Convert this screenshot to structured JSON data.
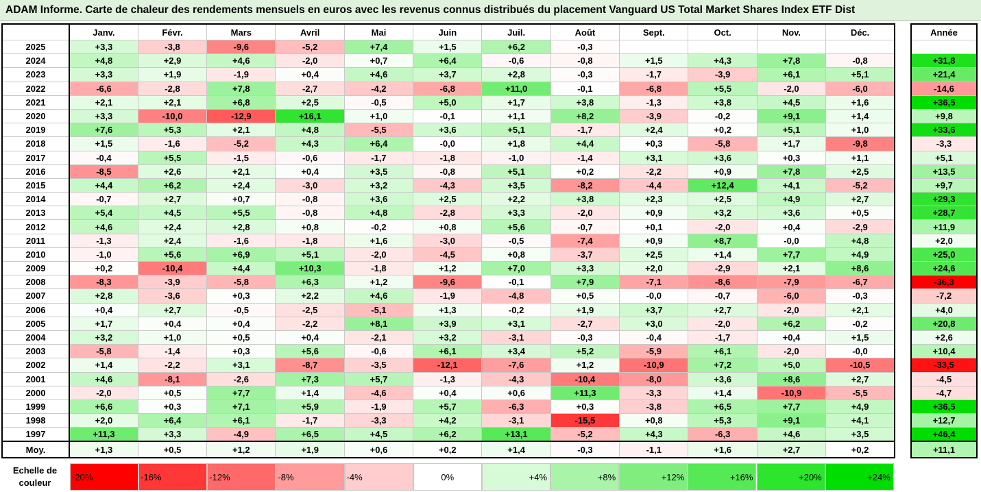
{
  "title": "ADAM Informe. Carte de chaleur des rendements mensuels en euros avec les revenus connus distribués du placement Vanguard US Total Market Shares Index ETF Dist",
  "chart_data": {
    "type": "heatmap",
    "months": [
      "Janv.",
      "Févr.",
      "Mars",
      "Avril",
      "Mai",
      "Juin",
      "Juil.",
      "Août",
      "Sept.",
      "Oct.",
      "Nov.",
      "Déc."
    ],
    "annual_header": "Année",
    "avg_label": "Moy.",
    "rows": [
      {
        "year": "2025",
        "values": [
          "+3,3",
          "-3,8",
          "-9,6",
          "-5,2",
          "+7,4",
          "+1,5",
          "+6,2",
          "-0,3",
          "",
          "",
          "",
          ""
        ],
        "annual": ""
      },
      {
        "year": "2024",
        "values": [
          "+4,8",
          "+2,9",
          "+4,6",
          "-2,0",
          "+0,7",
          "+6,4",
          "-0,6",
          "-0,8",
          "+1,5",
          "+4,3",
          "+7,8",
          "-0,8"
        ],
        "annual": "+31,8"
      },
      {
        "year": "2023",
        "values": [
          "+3,3",
          "+1,9",
          "-1,9",
          "+0,4",
          "+4,6",
          "+3,7",
          "+2,8",
          "-0,3",
          "-1,7",
          "-3,9",
          "+6,1",
          "+5,1"
        ],
        "annual": "+21,4"
      },
      {
        "year": "2022",
        "values": [
          "-6,6",
          "-2,8",
          "+7,8",
          "-2,7",
          "-4,2",
          "-6,8",
          "+11,0",
          "-0,1",
          "-6,8",
          "+5,5",
          "-2,0",
          "-6,0"
        ],
        "annual": "-14,6"
      },
      {
        "year": "2021",
        "values": [
          "+2,1",
          "+2,1",
          "+6,8",
          "+2,5",
          "-0,5",
          "+5,0",
          "+1,7",
          "+3,8",
          "-1,3",
          "+3,8",
          "+4,5",
          "+1,6"
        ],
        "annual": "+36,5"
      },
      {
        "year": "2020",
        "values": [
          "+3,3",
          "-10,0",
          "-12,9",
          "+16,1",
          "+1,0",
          "-0,1",
          "+1,1",
          "+8,2",
          "-3,9",
          "-0,2",
          "+9,1",
          "+1,4"
        ],
        "annual": "+9,8"
      },
      {
        "year": "2019",
        "values": [
          "+7,6",
          "+5,3",
          "+2,1",
          "+4,8",
          "-5,5",
          "+3,6",
          "+5,1",
          "-1,7",
          "+2,4",
          "+0,2",
          "+5,1",
          "+1,0"
        ],
        "annual": "+33,6"
      },
      {
        "year": "2018",
        "values": [
          "+1,5",
          "-1,6",
          "-5,2",
          "+4,3",
          "+6,4",
          "-0,0",
          "+1,8",
          "+4,4",
          "+0,3",
          "-5,8",
          "+1,7",
          "-9,8"
        ],
        "annual": "-3,3"
      },
      {
        "year": "2017",
        "values": [
          "-0,4",
          "+5,5",
          "-1,5",
          "-0,6",
          "-1,7",
          "-1,8",
          "-1,0",
          "-1,4",
          "+3,1",
          "+3,6",
          "+0,3",
          "+1,1"
        ],
        "annual": "+5,1"
      },
      {
        "year": "2016",
        "values": [
          "-8,5",
          "+2,6",
          "+2,1",
          "+0,4",
          "+3,5",
          "-0,8",
          "+5,1",
          "+0,2",
          "-2,2",
          "+0,9",
          "+7,8",
          "+2,5"
        ],
        "annual": "+13,5"
      },
      {
        "year": "2015",
        "values": [
          "+4,4",
          "+6,2",
          "+2,4",
          "-3,0",
          "+3,2",
          "-4,3",
          "+3,5",
          "-8,2",
          "-4,4",
          "+12,4",
          "+4,1",
          "-5,2"
        ],
        "annual": "+9,7"
      },
      {
        "year": "2014",
        "values": [
          "-0,7",
          "+2,7",
          "+0,7",
          "-0,8",
          "+3,6",
          "+2,5",
          "+2,2",
          "+3,8",
          "+2,3",
          "+2,5",
          "+4,9",
          "+2,7"
        ],
        "annual": "+29,3"
      },
      {
        "year": "2013",
        "values": [
          "+5,4",
          "+4,5",
          "+5,5",
          "-0,8",
          "+4,8",
          "-2,8",
          "+3,3",
          "-2,0",
          "+0,9",
          "+3,2",
          "+3,6",
          "+0,5"
        ],
        "annual": "+28,7"
      },
      {
        "year": "2012",
        "values": [
          "+4,6",
          "+2,4",
          "+2,8",
          "+0,8",
          "-0,2",
          "+0,8",
          "+5,6",
          "-0,7",
          "+0,1",
          "-2,0",
          "+0,4",
          "-2,9"
        ],
        "annual": "+11,9"
      },
      {
        "year": "2011",
        "values": [
          "-1,3",
          "+2,4",
          "-1,6",
          "-1,8",
          "+1,6",
          "-3,0",
          "-0,5",
          "-7,4",
          "+0,9",
          "+8,7",
          "-0,0",
          "+4,8"
        ],
        "annual": "+2,0"
      },
      {
        "year": "2010",
        "values": [
          "-1,0",
          "+5,6",
          "+6,9",
          "+5,1",
          "-2,0",
          "-4,5",
          "+0,8",
          "-3,7",
          "+2,5",
          "+1,4",
          "+7,7",
          "+4,9"
        ],
        "annual": "+25,0"
      },
      {
        "year": "2009",
        "values": [
          "+0,2",
          "-10,4",
          "+4,4",
          "+10,3",
          "-1,8",
          "+1,2",
          "+7,0",
          "+3,3",
          "+2,0",
          "-2,9",
          "+2,1",
          "+8,6"
        ],
        "annual": "+24,6"
      },
      {
        "year": "2008",
        "values": [
          "-8,3",
          "-3,9",
          "-5,8",
          "+6,3",
          "+1,2",
          "-9,6",
          "-0,1",
          "+7,9",
          "-7,1",
          "-8,6",
          "-7,9",
          "-6,7"
        ],
        "annual": "-36,3"
      },
      {
        "year": "2007",
        "values": [
          "+2,8",
          "-3,6",
          "+0,3",
          "+2,2",
          "+4,6",
          "-1,9",
          "-4,8",
          "+0,5",
          "-0,0",
          "-0,7",
          "-6,0",
          "-0,3"
        ],
        "annual": "-7,2"
      },
      {
        "year": "2006",
        "values": [
          "+0,4",
          "+2,7",
          "-0,5",
          "-2,5",
          "-5,1",
          "+1,3",
          "-0,2",
          "+1,9",
          "+3,7",
          "+2,7",
          "-2,0",
          "+2,1"
        ],
        "annual": "+4,0"
      },
      {
        "year": "2005",
        "values": [
          "+1,7",
          "+0,4",
          "+0,4",
          "-2,2",
          "+8,1",
          "+3,9",
          "+3,1",
          "-2,7",
          "+3,0",
          "-2,0",
          "+6,2",
          "-0,2"
        ],
        "annual": "+20,8"
      },
      {
        "year": "2004",
        "values": [
          "+3,2",
          "+1,0",
          "+0,5",
          "+0,4",
          "-2,1",
          "+3,2",
          "-3,1",
          "-0,3",
          "-0,4",
          "-1,7",
          "+0,4",
          "+1,5"
        ],
        "annual": "+2,6"
      },
      {
        "year": "2003",
        "values": [
          "-5,8",
          "-1,4",
          "+0,3",
          "+5,6",
          "-0,6",
          "+6,1",
          "+3,4",
          "+5,2",
          "-5,9",
          "+6,1",
          "-2,0",
          "-0,0"
        ],
        "annual": "+10,4"
      },
      {
        "year": "2002",
        "values": [
          "+1,4",
          "-2,2",
          "+3,1",
          "-8,7",
          "-3,5",
          "-12,1",
          "-7,6",
          "+1,2",
          "-10,9",
          "+7,2",
          "+5,0",
          "-10,5"
        ],
        "annual": "-33,5"
      },
      {
        "year": "2001",
        "values": [
          "+4,6",
          "-8,1",
          "-2,6",
          "+7,3",
          "+5,7",
          "-1,3",
          "-4,3",
          "-10,4",
          "-8,0",
          "+3,6",
          "+8,6",
          "+2,7"
        ],
        "annual": "-4,5"
      },
      {
        "year": "2000",
        "values": [
          "-2,0",
          "+0,5",
          "+7,7",
          "+1,4",
          "-4,6",
          "+0,4",
          "+0,6",
          "+11,3",
          "-3,3",
          "+1,4",
          "-10,9",
          "-5,5"
        ],
        "annual": "-4,7"
      },
      {
        "year": "1999",
        "values": [
          "+6,6",
          "+0,3",
          "+7,1",
          "+5,9",
          "-1,9",
          "+5,7",
          "-6,3",
          "+0,3",
          "-3,8",
          "+6,5",
          "+7,7",
          "+4,9"
        ],
        "annual": "+36,5"
      },
      {
        "year": "1998",
        "values": [
          "+2,0",
          "+6,4",
          "+6,1",
          "-1,7",
          "-3,3",
          "+4,2",
          "-3,1",
          "-15,5",
          "+0,8",
          "+5,3",
          "+9,1",
          "+4,1"
        ],
        "annual": "+12,7"
      },
      {
        "year": "1997",
        "values": [
          "+11,3",
          "+3,3",
          "-4,9",
          "+6,5",
          "+4,5",
          "+6,2",
          "+13,1",
          "-5,2",
          "+4,3",
          "-6,3",
          "+4,6",
          "+3,5"
        ],
        "annual": "+46,4"
      }
    ],
    "averages": [
      "+1,3",
      "+0,5",
      "+1,2",
      "+1,9",
      "+0,6",
      "+0,2",
      "+1,4",
      "-0,3",
      "-1,1",
      "+1,6",
      "+2,7",
      "+0,2"
    ],
    "annual_average": "+11,1",
    "color_scale": {
      "label": "Echelle de couleur",
      "stops": [
        {
          "text": "-20%",
          "value": -20,
          "color": "#ff0000",
          "align": "left"
        },
        {
          "text": "-16%",
          "value": -16,
          "color": "#ff3737",
          "align": "left"
        },
        {
          "text": "-12%",
          "value": -12,
          "color": "#ff6969",
          "align": "left"
        },
        {
          "text": "-8%",
          "value": -8,
          "color": "#ff9b9b",
          "align": "left"
        },
        {
          "text": "-4%",
          "value": -4,
          "color": "#ffcdcd",
          "align": "left"
        },
        {
          "text": "0%",
          "value": 0,
          "color": "#ffffff",
          "align": "center"
        },
        {
          "text": "+4%",
          "value": 4,
          "color": "#d7fad7",
          "align": "right"
        },
        {
          "text": "+8%",
          "value": 8,
          "color": "#aaf4aa",
          "align": "right"
        },
        {
          "text": "+12%",
          "value": 12,
          "color": "#7fee7f",
          "align": "right"
        },
        {
          "text": "+16%",
          "value": 16,
          "color": "#55e955",
          "align": "right"
        },
        {
          "text": "+20%",
          "value": 20,
          "color": "#2ce52c",
          "align": "right"
        },
        {
          "text": "+24%",
          "value": 24,
          "color": "#00dd00",
          "align": "right"
        }
      ]
    }
  }
}
